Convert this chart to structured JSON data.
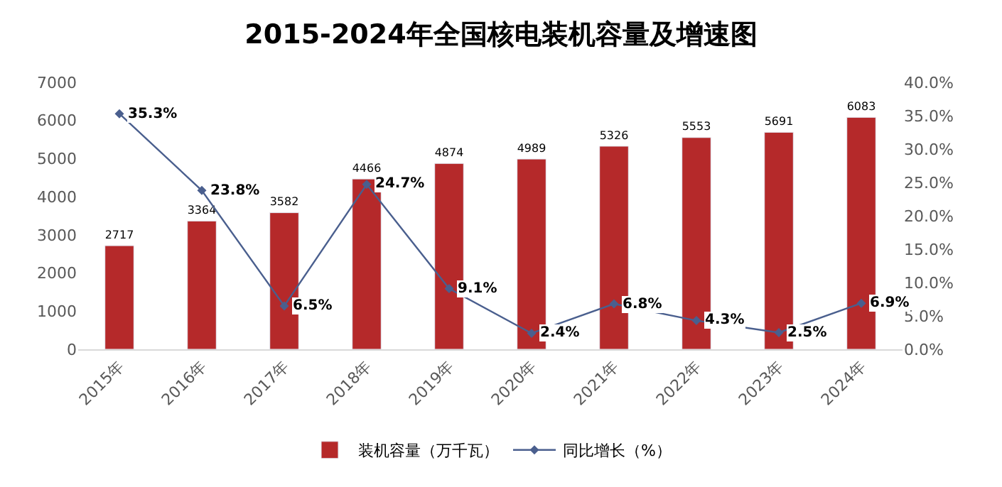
{
  "chart_data": {
    "type": "bar",
    "title": "2015-2024年全国核电装机容量及增速图",
    "categories": [
      "2015年",
      "2016年",
      "2017年",
      "2018年",
      "2019年",
      "2020年",
      "2021年",
      "2022年",
      "2023年",
      "2024年"
    ],
    "series": [
      {
        "name": "装机容量（万千瓦）",
        "color": "#b5292a",
        "values": [
          2717,
          3364,
          3582,
          4466,
          4874,
          4989,
          5326,
          5553,
          5691,
          6083
        ],
        "value_labels": [
          "2717",
          "3364",
          "3582",
          "4466",
          "4874",
          "4989",
          "5326",
          "5553",
          "5691",
          "6083"
        ]
      },
      {
        "name": "同比增长（%）",
        "type": "line",
        "axis": "y2",
        "color": "#4a5f8e",
        "marker": "diamond",
        "values": [
          35.3,
          23.8,
          6.5,
          24.7,
          9.1,
          2.4,
          6.8,
          4.3,
          2.5,
          6.9
        ],
        "value_labels": [
          "35.3%",
          "23.8%",
          "6.5%",
          "24.7%",
          "9.1%",
          "2.4%",
          "6.8%",
          "4.3%",
          "2.5%",
          "6.9%"
        ]
      }
    ],
    "ylim": [
      0,
      7000
    ],
    "yticks": [
      0,
      1000,
      2000,
      3000,
      4000,
      5000,
      6000,
      7000
    ],
    "y2lim": [
      0,
      40
    ],
    "y2ticks": [
      {
        "value": 0,
        "label": "0.0%"
      },
      {
        "value": 5,
        "label": "5.0%"
      },
      {
        "value": 10,
        "label": "10.0%"
      },
      {
        "value": 15,
        "label": "15.0%"
      },
      {
        "value": 20,
        "label": "20.0%"
      },
      {
        "value": 25,
        "label": "25.0%"
      },
      {
        "value": 30,
        "label": "30.0%"
      },
      {
        "value": 35,
        "label": "35.0%"
      },
      {
        "value": 40,
        "label": "40.0%"
      }
    ],
    "grid": false,
    "legend": "bottom"
  }
}
